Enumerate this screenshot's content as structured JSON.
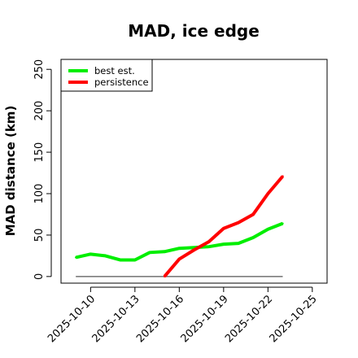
{
  "chart_data": {
    "type": "line",
    "title": "MAD, ice edge",
    "xlabel": "",
    "ylabel": "MAD distance (km)",
    "x_ticks": [
      "2025-10-10",
      "2025-10-13",
      "2025-10-16",
      "2025-10-19",
      "2025-10-22",
      "2025-10-25"
    ],
    "xlim": [
      "2025-10-08",
      "2025-10-26"
    ],
    "ylim": [
      -8,
      262
    ],
    "y_ticks": [
      0,
      50,
      100,
      150,
      200,
      250
    ],
    "legend_position": "top-left",
    "grid": false,
    "series": [
      {
        "name": "best est.",
        "color": "#00ee00",
        "x": [
          "2025-10-09",
          "2025-10-10",
          "2025-10-11",
          "2025-10-12",
          "2025-10-13",
          "2025-10-14",
          "2025-10-15",
          "2025-10-16",
          "2025-10-17",
          "2025-10-18",
          "2025-10-19",
          "2025-10-20",
          "2025-10-21",
          "2025-10-22",
          "2025-10-23"
        ],
        "values": [
          23,
          27,
          25,
          20,
          20,
          29,
          30,
          34,
          35,
          36,
          39,
          40,
          47,
          57,
          64
        ]
      },
      {
        "name": "persistence",
        "color": "#ff0000",
        "x": [
          "2025-10-15",
          "2025-10-16",
          "2025-10-17",
          "2025-10-18",
          "2025-10-19",
          "2025-10-20",
          "2025-10-21",
          "2025-10-22",
          "2025-10-23"
        ],
        "values": [
          0,
          21,
          32,
          42,
          58,
          65,
          75,
          100,
          121
        ]
      }
    ],
    "reference_line": {
      "color": "#555555",
      "x": [
        "2025-10-09",
        "2025-10-23"
      ],
      "values": [
        0,
        0
      ]
    }
  }
}
